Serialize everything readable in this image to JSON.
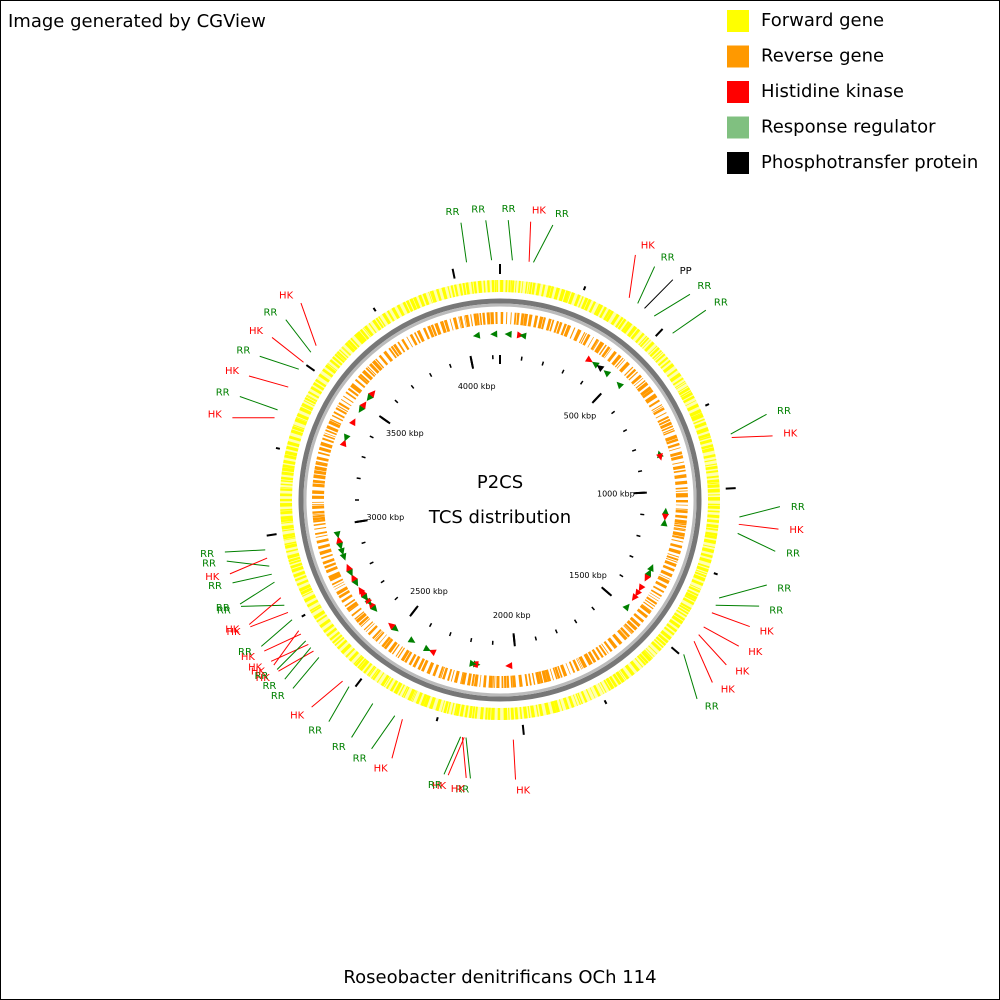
{
  "header": "Image generated by CGView",
  "legend": [
    {
      "label": "Forward gene",
      "color": "#ffff00"
    },
    {
      "label": "Reverse gene",
      "color": "#ff9900"
    },
    {
      "label": "Histidine kinase",
      "color": "#ff0000"
    },
    {
      "label": "Response regulator",
      "color": "#80c080"
    },
    {
      "label": "Phosphotransfer protein",
      "color": "#000000"
    }
  ],
  "map": {
    "title": "P2CS",
    "subtitle": "TCS distribution",
    "length": 4133,
    "colors": {
      "HK": "#ff0000",
      "RR": "#008000",
      "PP": "#000000"
    },
    "ticks": [
      {
        "value": 500,
        "label": "500 kbp"
      },
      {
        "value": 1000,
        "label": "1000 kbp"
      },
      {
        "value": 1500,
        "label": "1500 kbp"
      },
      {
        "value": 2000,
        "label": "2000 kbp"
      },
      {
        "value": 2500,
        "label": "2500 kbp"
      },
      {
        "value": 3000,
        "label": "3000 kbp"
      },
      {
        "value": 3500,
        "label": "3500 kbp"
      },
      {
        "value": 4000,
        "label": "4000 kbp"
      }
    ],
    "features": [
      {
        "label": "RR",
        "position": 34
      },
      {
        "label": "HK",
        "position": 80
      },
      {
        "label": "RR",
        "position": 92
      },
      {
        "label": "HK",
        "position": 374
      },
      {
        "label": "RR",
        "position": 402
      },
      {
        "label": "PP",
        "position": 425
      },
      {
        "label": "RR",
        "position": 459
      },
      {
        "label": "RR",
        "position": 528
      },
      {
        "label": "RR",
        "position": 850
      },
      {
        "label": "HK",
        "position": 860
      },
      {
        "label": "RR",
        "position": 1080
      },
      {
        "label": "HK",
        "position": 1100
      },
      {
        "label": "RR",
        "position": 1125
      },
      {
        "label": "RR",
        "position": 1310
      },
      {
        "label": "RR",
        "position": 1332
      },
      {
        "label": "HK",
        "position": 1355
      },
      {
        "label": "HK",
        "position": 1400
      },
      {
        "label": "HK",
        "position": 1425
      },
      {
        "label": "HK",
        "position": 1447
      },
      {
        "label": "RR",
        "position": 1493
      },
      {
        "label": "HK",
        "position": 2030
      },
      {
        "label": "RR",
        "position": 2160
      },
      {
        "label": "HK",
        "position": 2165
      },
      {
        "label": "HK",
        "position": 2170
      },
      {
        "label": "RR",
        "position": 2175
      },
      {
        "label": "HK",
        "position": 2342
      },
      {
        "label": "RR",
        "position": 2365
      },
      {
        "label": "RR",
        "position": 2434
      },
      {
        "label": "RR",
        "position": 2514
      },
      {
        "label": "HK",
        "position": 2537
      },
      {
        "label": "RR",
        "position": 2629
      },
      {
        "label": "HK",
        "position": 2652
      },
      {
        "label": "RR",
        "position": 2664
      },
      {
        "label": "HK",
        "position": 2675
      },
      {
        "label": "RR",
        "position": 2687
      },
      {
        "label": "HK",
        "position": 2710
      },
      {
        "label": "HK",
        "position": 2721
      },
      {
        "label": "RR",
        "position": 2756
      },
      {
        "label": "HK",
        "position": 2779
      },
      {
        "label": "RR",
        "position": 2801
      },
      {
        "label": "HK",
        "position": 2824
      },
      {
        "label": "RR",
        "position": 2870
      },
      {
        "label": "RR",
        "position": 2893
      },
      {
        "label": "RR",
        "position": 2916
      },
      {
        "label": "HK",
        "position": 2939
      },
      {
        "label": "RR",
        "position": 2962
      },
      {
        "label": "HK",
        "position": 3330
      },
      {
        "label": "RR",
        "position": 3353
      },
      {
        "label": "HK",
        "position": 3422
      },
      {
        "label": "RR",
        "position": 3479
      },
      {
        "label": "HK",
        "position": 3502
      },
      {
        "label": "RR",
        "position": 3536
      },
      {
        "label": "HK",
        "position": 3559
      },
      {
        "label": "RR",
        "position": 4041
      },
      {
        "label": "RR",
        "position": 4110
      }
    ]
  },
  "footer": "Roseobacter denitrificans OCh 114"
}
